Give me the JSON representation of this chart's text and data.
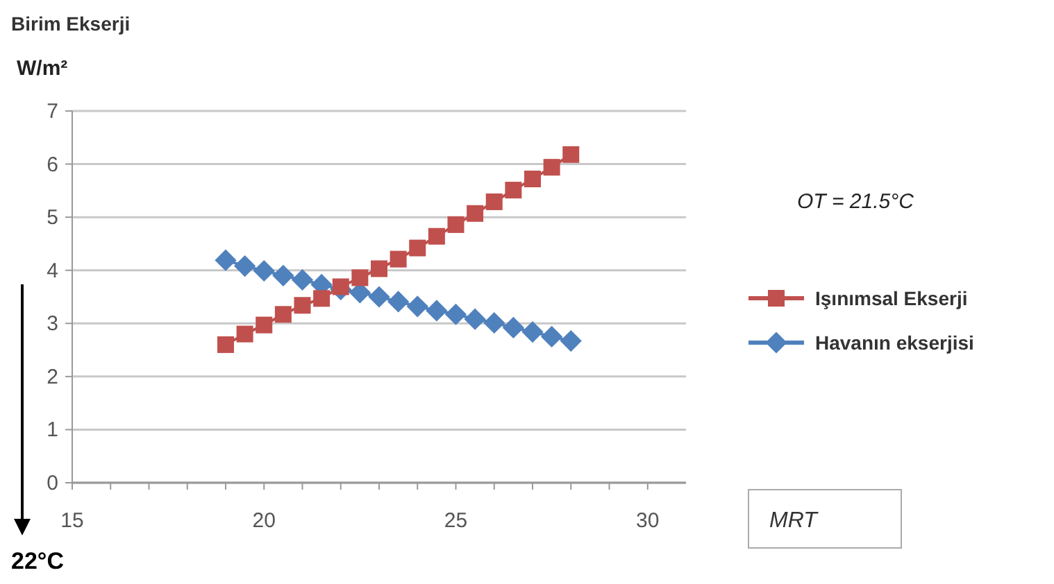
{
  "chart_data": {
    "type": "line",
    "title": "Birim Ekserji",
    "ylabel": "W/m²",
    "xlabel": "MRT",
    "x": [
      19,
      19.5,
      20,
      20.5,
      21,
      21.5,
      22,
      22.5,
      23,
      23.5,
      24,
      24.5,
      25,
      25.5,
      26,
      26.5,
      27,
      27.5,
      28
    ],
    "series": [
      {
        "name": "Işınımsal Ekserji",
        "color": "#c0504d",
        "marker": "square",
        "values": [
          2.6,
          2.8,
          2.97,
          3.17,
          3.34,
          3.47,
          3.69,
          3.86,
          4.03,
          4.21,
          4.42,
          4.64,
          4.86,
          5.07,
          5.29,
          5.51,
          5.72,
          5.94,
          6.18
        ]
      },
      {
        "name": "Havanın ekserjisi",
        "color": "#4f81bd",
        "marker": "diamond",
        "values": [
          4.19,
          4.08,
          3.99,
          3.9,
          3.82,
          3.73,
          3.64,
          3.58,
          3.5,
          3.41,
          3.32,
          3.24,
          3.17,
          3.08,
          3.01,
          2.92,
          2.84,
          2.75,
          2.67
        ]
      }
    ],
    "xlim": [
      15,
      31
    ],
    "xticks": [
      15,
      {
        "value": 16,
        "label": null
      },
      {
        "value": 17,
        "label": null
      },
      {
        "value": 18,
        "label": null
      },
      {
        "value": 19,
        "label": null
      },
      20,
      {
        "value": 21,
        "label": null
      },
      {
        "value": 22,
        "label": null
      },
      {
        "value": 23,
        "label": null
      },
      {
        "value": 24,
        "label": null
      },
      25,
      {
        "value": 26,
        "label": null
      },
      {
        "value": 27,
        "label": null
      },
      {
        "value": 28,
        "label": null
      },
      {
        "value": 29,
        "label": null
      },
      30
    ],
    "ylim": [
      0,
      7
    ],
    "yticks": [
      0,
      1,
      2,
      3,
      4,
      5,
      6,
      7
    ],
    "grid": "y",
    "legend": "right",
    "annotations": [
      "OT = 21.5°C",
      "22°C"
    ]
  }
}
